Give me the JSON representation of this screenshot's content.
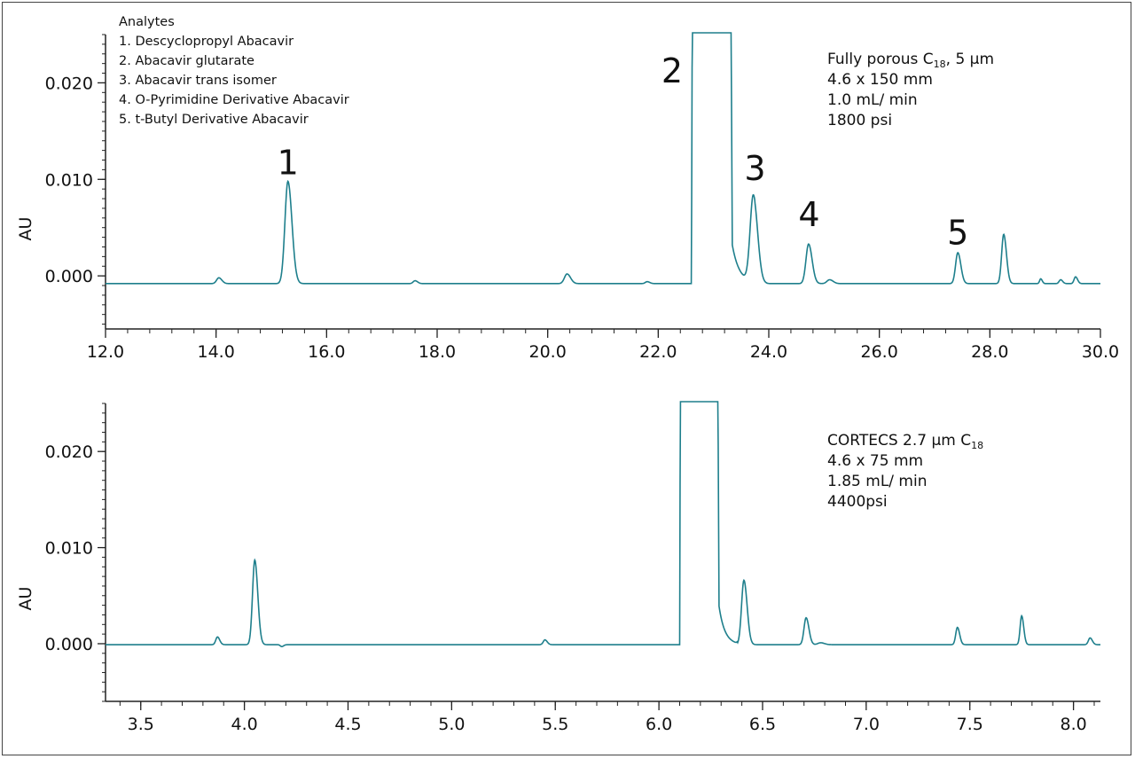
{
  "colors": {
    "trace": "#1e7f8c",
    "axis": "#222222"
  },
  "chart_data": [
    {
      "type": "line",
      "name": "fully-porous",
      "ylabel": "AU",
      "xlim": [
        12.0,
        30.0
      ],
      "ylim": [
        -0.0055,
        0.025
      ],
      "x_ticks": [
        12.0,
        14.0,
        16.0,
        18.0,
        20.0,
        22.0,
        24.0,
        26.0,
        28.0,
        30.0
      ],
      "x_tick_labels": [
        "12.0",
        "14.0",
        "16.0",
        "18.0",
        "20.0",
        "22.0",
        "24.0",
        "26.0",
        "28.0",
        "30.0"
      ],
      "y_ticks": [
        0.0,
        0.01,
        0.02
      ],
      "y_tick_labels": [
        "0.000",
        "0.010",
        "0.020"
      ],
      "baseline": -0.0008,
      "peaks": [
        {
          "x": 14.05,
          "y": -0.0002,
          "w": 0.06
        },
        {
          "x": 15.3,
          "y": 0.0098,
          "w": 0.08
        },
        {
          "x": 17.6,
          "y": -0.0005,
          "w": 0.05
        },
        {
          "x": 20.35,
          "y": 0.0002,
          "w": 0.07
        },
        {
          "x": 21.8,
          "y": -0.0006,
          "w": 0.05
        },
        {
          "x": 23.72,
          "y": 0.0082,
          "w": 0.085
        },
        {
          "x": 24.72,
          "y": 0.0033,
          "w": 0.07
        },
        {
          "x": 25.1,
          "y": -0.0004,
          "w": 0.07
        },
        {
          "x": 27.42,
          "y": 0.0024,
          "w": 0.06
        },
        {
          "x": 28.25,
          "y": 0.0043,
          "w": 0.055
        },
        {
          "x": 28.92,
          "y": -0.0003,
          "w": 0.03
        },
        {
          "x": 29.28,
          "y": -0.0004,
          "w": 0.04
        },
        {
          "x": 29.55,
          "y": -0.0001,
          "w": 0.04
        }
      ],
      "main_peak": {
        "rise_start": 22.6,
        "rise_end": 22.67,
        "fall_start": 23.22,
        "fall_end": 23.34,
        "tail_to": 23.75
      },
      "peak_labels": [
        {
          "text": "1",
          "x": 15.3,
          "y": 0.01
        },
        {
          "text": "2",
          "x": 22.25,
          "y": 0.0195
        },
        {
          "text": "3",
          "x": 23.75,
          "y": 0.0094
        },
        {
          "text": "4",
          "x": 24.73,
          "y": 0.0046
        },
        {
          "text": "5",
          "x": 27.42,
          "y": 0.0027
        }
      ],
      "legend": {
        "title": "Analytes",
        "items": [
          "1. Descyclopropyl Abacavir",
          "2. Abacavir glutarate",
          "3. Abacavir trans isomer",
          "4. O-Pyrimidine Derivative Abacavir",
          "5. t-Butyl Derivative Abacavir"
        ]
      },
      "conditions": {
        "column_prefix": "Fully porous C",
        "column_sub": "18",
        "column_suffix": ", 5 µm",
        "lines": [
          "4.6 x 150 mm",
          "1.0 mL/ min",
          "1800 psi"
        ]
      }
    },
    {
      "type": "line",
      "name": "cortecs",
      "ylabel": "AU",
      "xlim": [
        3.33,
        8.13
      ],
      "ylim": [
        -0.006,
        0.025
      ],
      "x_ticks": [
        3.5,
        4.0,
        4.5,
        5.0,
        5.5,
        6.0,
        6.5,
        7.0,
        7.5,
        8.0
      ],
      "x_tick_labels": [
        "3.5",
        "4.0",
        "4.5",
        "5.0",
        "5.5",
        "6.0",
        "6.5",
        "7.0",
        "7.5",
        "8.0"
      ],
      "y_ticks": [
        0.0,
        0.01,
        0.02
      ],
      "y_tick_labels": [
        "0.000",
        "0.010",
        "0.020"
      ],
      "baseline": -0.0001,
      "peaks": [
        {
          "x": 3.87,
          "y": 0.0007,
          "w": 0.012
        },
        {
          "x": 4.05,
          "y": 0.0087,
          "w": 0.016
        },
        {
          "x": 4.18,
          "y": -0.0003,
          "w": 0.01
        },
        {
          "x": 5.45,
          "y": 0.0004,
          "w": 0.012
        },
        {
          "x": 6.41,
          "y": 0.0066,
          "w": 0.017
        },
        {
          "x": 6.71,
          "y": 0.0027,
          "w": 0.015
        },
        {
          "x": 6.78,
          "y": 0.0001,
          "w": 0.02
        },
        {
          "x": 7.44,
          "y": 0.0017,
          "w": 0.012
        },
        {
          "x": 7.75,
          "y": 0.0029,
          "w": 0.011
        },
        {
          "x": 8.08,
          "y": 0.0006,
          "w": 0.012
        }
      ],
      "main_peak": {
        "rise_start": 6.1,
        "rise_end": 6.115,
        "fall_start": 6.26,
        "fall_end": 6.29,
        "tail_to": 6.38
      },
      "conditions": {
        "column_prefix": "CORTECS 2.7 µm C",
        "column_sub": "18",
        "column_suffix": "",
        "lines": [
          "4.6 x 75 mm",
          "1.85 mL/ min",
          "4400psi"
        ]
      }
    }
  ]
}
